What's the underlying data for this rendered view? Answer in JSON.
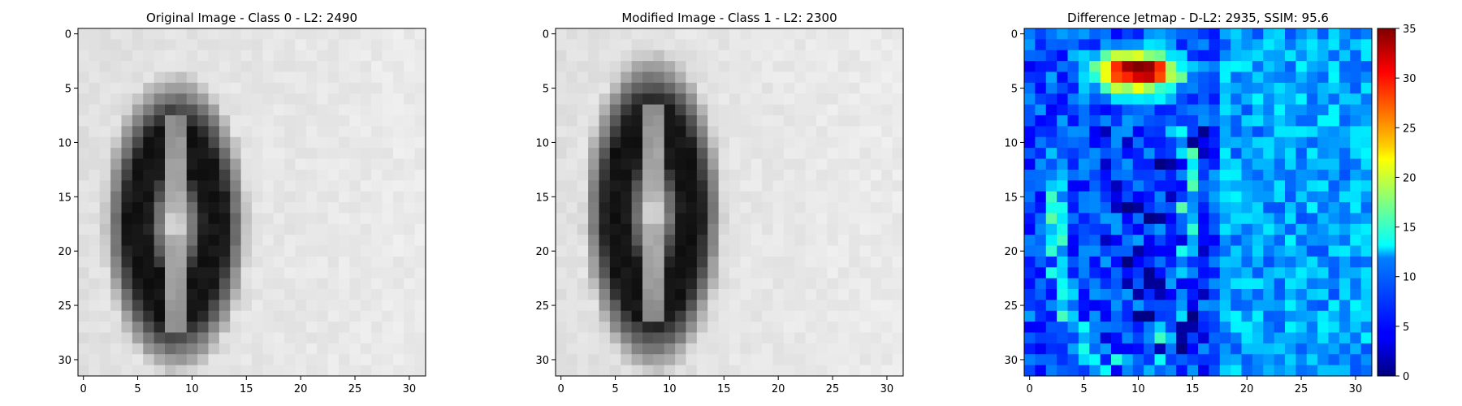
{
  "chart_data": [
    {
      "type": "heatmap",
      "colormap": "gray",
      "title": "Original Image - Class 0 - L2: 2490",
      "title_color": "#000000",
      "grid": false,
      "xlim": [
        -0.5,
        31.5
      ],
      "ylim": [
        31.5,
        -0.5
      ],
      "xticks": [
        0,
        5,
        10,
        15,
        20,
        25,
        30
      ],
      "yticks": [
        0,
        5,
        10,
        15,
        20,
        25,
        30
      ],
      "image_size": [
        32,
        32
      ],
      "digit_ellipse": {
        "center": [
          8.5,
          17.5
        ],
        "radius_x": 6.5,
        "radius_y": 13.5,
        "inner_radius_x": 1.3,
        "inner_radius_y": 10.5
      }
    },
    {
      "type": "heatmap",
      "colormap": "gray",
      "title": "Modified Image - Class 1 - L2: 2300",
      "title_color": "#ff0000",
      "grid": false,
      "xlim": [
        -0.5,
        31.5
      ],
      "ylim": [
        31.5,
        -0.5
      ],
      "xticks": [
        0,
        5,
        10,
        15,
        20,
        25,
        30
      ],
      "yticks": [
        0,
        5,
        10,
        15,
        20,
        25,
        30
      ],
      "image_size": [
        32,
        32
      ],
      "digit_ellipse": {
        "center": [
          8.5,
          16.5
        ],
        "radius_x": 6.3,
        "radius_y": 14.5,
        "inner_radius_x": 1.3,
        "inner_radius_y": 11
      }
    },
    {
      "type": "heatmap",
      "colormap": "jet",
      "title": "Difference Jetmap - D-L2: 2935, SSIM: 95.6",
      "title_color": "#000000",
      "grid": false,
      "xlim": [
        -0.5,
        31.5
      ],
      "ylim": [
        31.5,
        -0.5
      ],
      "xticks": [
        0,
        5,
        10,
        15,
        20,
        25,
        30
      ],
      "yticks": [
        0,
        5,
        10,
        15,
        20,
        25,
        30
      ],
      "image_size": [
        32,
        32
      ],
      "hotspot": {
        "center": [
          10,
          3.5
        ],
        "peak": 35
      },
      "colorbar": {
        "min": 0,
        "max": 35,
        "ticks": [
          0,
          5,
          10,
          15,
          20,
          25,
          30,
          35
        ]
      }
    }
  ]
}
